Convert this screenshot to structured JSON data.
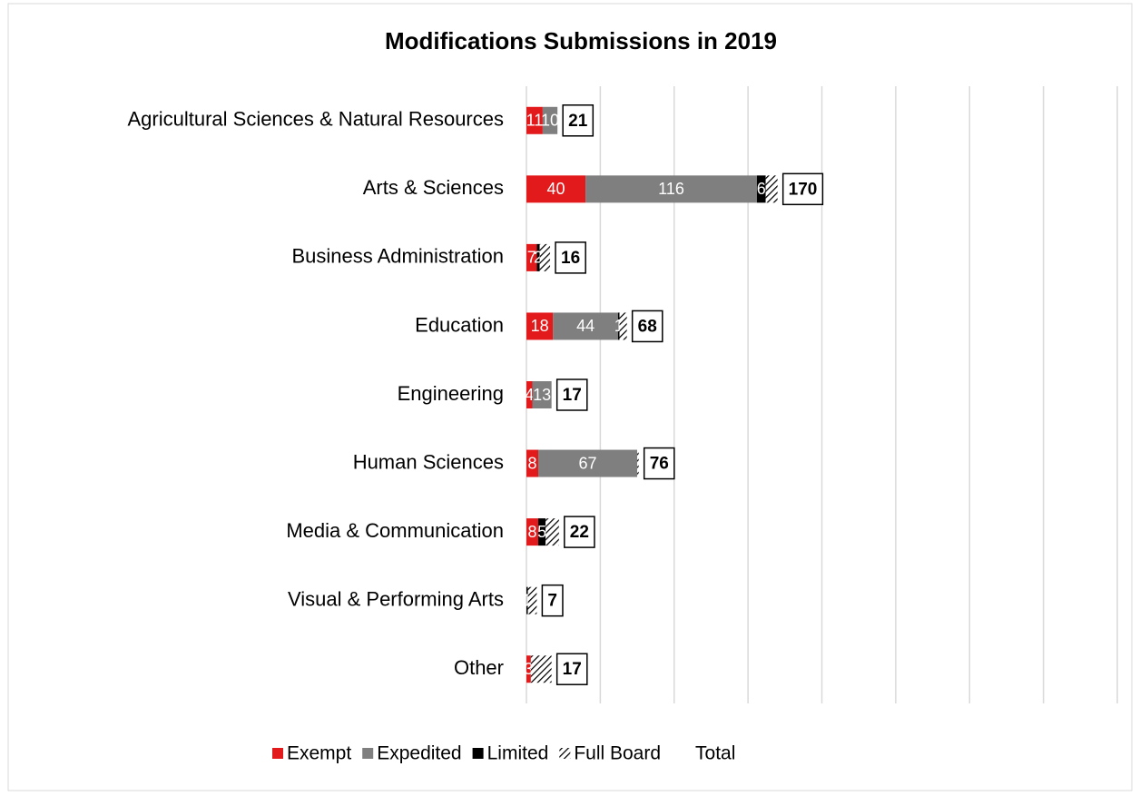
{
  "chart_data": {
    "type": "stacked-barh",
    "title": "Modifications Submissions in 2019",
    "categories": [
      "Agricultural Sciences & Natural Resources",
      "Arts & Sciences",
      "Business Administration",
      "Education",
      "Engineering",
      "Human Sciences",
      "Media & Communication",
      "Visual & Performing Arts",
      "Other"
    ],
    "series": [
      {
        "name": "Exempt",
        "color": "#e31a1c",
        "values": [
          11,
          40,
          7,
          18,
          4,
          8,
          8,
          0,
          3
        ]
      },
      {
        "name": "Expedited",
        "color": "#7f7f7f",
        "values": [
          10,
          116,
          0,
          44,
          13,
          67,
          0,
          0,
          0
        ]
      },
      {
        "name": "Limited",
        "color": "#000000",
        "values": [
          0,
          6,
          2,
          1,
          0,
          0,
          5,
          1,
          0
        ]
      },
      {
        "name": "Full Board",
        "color": "hatch",
        "values": [
          0,
          8,
          7,
          5,
          0,
          1,
          9,
          6,
          14
        ]
      },
      {
        "name": "Total",
        "color": "none",
        "values": [
          21,
          170,
          16,
          68,
          17,
          76,
          22,
          7,
          17
        ]
      }
    ],
    "xlim": [
      0,
      400
    ],
    "xticks": [
      0,
      50,
      100,
      150,
      200,
      250,
      300,
      350,
      400
    ],
    "grid": true,
    "legend": "bottom"
  }
}
